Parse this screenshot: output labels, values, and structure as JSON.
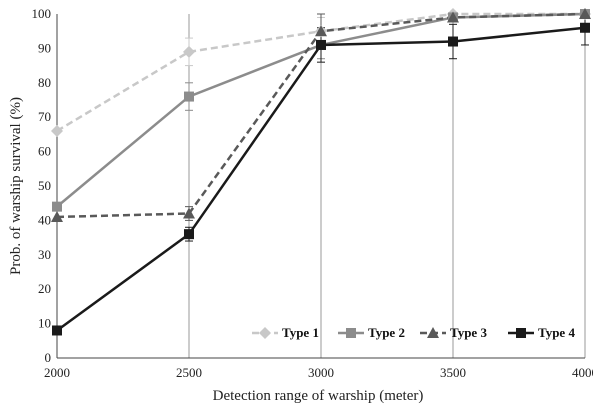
{
  "chart_data": {
    "type": "line",
    "x": [
      2000,
      2500,
      3000,
      3500,
      4000
    ],
    "xticks": [
      "2000",
      "2500",
      "3000",
      "3500",
      "4000"
    ],
    "yticks": [
      "0",
      "10",
      "20",
      "30",
      "40",
      "50",
      "60",
      "70",
      "80",
      "90",
      "100"
    ],
    "xlim": [
      2000,
      4000
    ],
    "ylim": [
      0,
      100
    ],
    "xlabel": "Detection range of warship (meter)",
    "ylabel": "Prob. of warship survival (%)",
    "vertical_grid": true,
    "legend_position": "bottom-right",
    "series": [
      {
        "name": "Type 1",
        "values": [
          66,
          89,
          95,
          100,
          100
        ],
        "error": [
          0,
          4,
          4,
          1,
          0
        ],
        "color": "#c8c8c8",
        "dash": "dashed",
        "marker": "diamond"
      },
      {
        "name": "Type 2",
        "values": [
          44,
          76,
          91,
          99,
          100
        ],
        "error": [
          0,
          4,
          4,
          1,
          0
        ],
        "color": "#8c8c8c",
        "dash": "solid",
        "marker": "square"
      },
      {
        "name": "Type 3",
        "values": [
          41,
          42,
          95,
          99,
          100
        ],
        "error": [
          0,
          2,
          5,
          1,
          0
        ],
        "color": "#595959",
        "dash": "dashed",
        "marker": "triangle"
      },
      {
        "name": "Type 4",
        "values": [
          8,
          36,
          91,
          92,
          96
        ],
        "error": [
          0,
          2,
          5,
          5,
          5
        ],
        "color": "#1a1a1a",
        "dash": "solid",
        "marker": "square"
      }
    ]
  }
}
